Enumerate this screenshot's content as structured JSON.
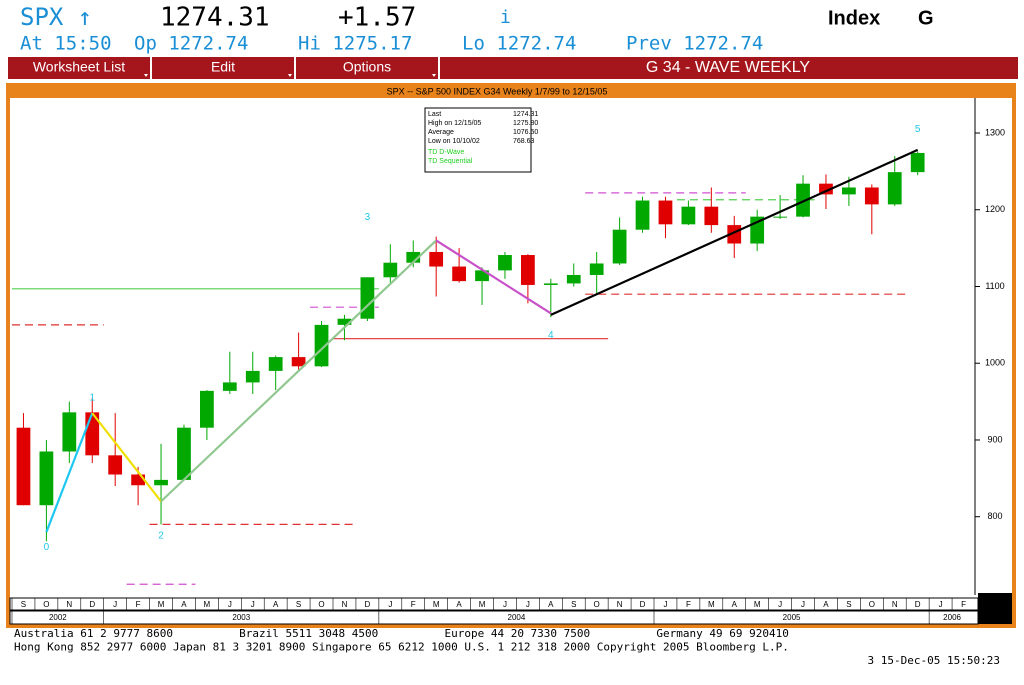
{
  "header": {
    "ticker": "SPX ↑",
    "price": "1274.31",
    "change": "+1.57",
    "info": "i",
    "market": "Index",
    "key": "G",
    "at": "At 15:50",
    "open": "Op 1272.74",
    "high": "Hi 1275.17",
    "low": "Lo 1272.74",
    "prev": "Prev 1272.74"
  },
  "menu": {
    "items": [
      "Worksheet List",
      "Edit",
      "Options"
    ],
    "title": "G 34 - WAVE WEEKLY"
  },
  "info_box": {
    "rows": [
      [
        "Last",
        "1274.31"
      ],
      [
        "High on  12/15/05",
        "1275.80"
      ],
      [
        "Average",
        "1076.50"
      ],
      [
        "Low on  10/10/02",
        "768.63"
      ]
    ],
    "studies": [
      "TD D-Wave",
      "TD Sequential"
    ]
  },
  "chart_data": {
    "type": "candlestick",
    "title": "SPX -- S&P 500 INDEX G34 Weekly 1/7/99 to 12/15/05",
    "x": [
      "2002-09",
      "2002-10",
      "2002-11",
      "2002-12",
      "2003-01",
      "2003-02",
      "2003-03",
      "2003-04",
      "2003-05",
      "2003-06",
      "2003-07",
      "2003-08",
      "2003-09",
      "2003-10",
      "2003-11",
      "2003-12",
      "2004-01",
      "2004-02",
      "2004-03",
      "2004-04",
      "2004-05",
      "2004-06",
      "2004-07",
      "2004-08",
      "2004-09",
      "2004-10",
      "2004-11",
      "2004-12",
      "2005-01",
      "2005-02",
      "2005-03",
      "2005-04",
      "2005-05",
      "2005-06",
      "2005-07",
      "2005-08",
      "2005-09",
      "2005-10",
      "2005-11",
      "2005-12"
    ],
    "open": [
      916,
      815,
      885,
      936,
      880,
      855,
      841,
      848,
      916,
      964,
      975,
      990,
      1008,
      996,
      1050,
      1058,
      1112,
      1131,
      1145,
      1126,
      1107,
      1121,
      1141,
      1102,
      1104,
      1115,
      1130,
      1174,
      1212,
      1181,
      1204,
      1180,
      1156,
      1191,
      1191,
      1234,
      1220,
      1229,
      1207,
      1249
    ],
    "high": [
      935,
      900,
      950,
      955,
      935,
      865,
      895,
      920,
      965,
      1015,
      1015,
      1010,
      1040,
      1055,
      1063,
      1112,
      1155,
      1160,
      1165,
      1150,
      1125,
      1145,
      1142,
      1110,
      1130,
      1145,
      1190,
      1217,
      1217,
      1212,
      1229,
      1192,
      1200,
      1219,
      1245,
      1246,
      1243,
      1233,
      1270,
      1276
    ],
    "low": [
      815,
      768,
      870,
      870,
      840,
      815,
      790,
      850,
      900,
      960,
      960,
      965,
      990,
      995,
      1030,
      1055,
      1105,
      1125,
      1087,
      1105,
      1076,
      1110,
      1078,
      1060,
      1100,
      1090,
      1128,
      1170,
      1163,
      1180,
      1170,
      1137,
      1146,
      1188,
      1190,
      1201,
      1205,
      1168,
      1205,
      1245
    ],
    "close": [
      815,
      885,
      936,
      880,
      855,
      841,
      848,
      916,
      964,
      975,
      990,
      1008,
      996,
      1050,
      1058,
      1112,
      1131,
      1145,
      1126,
      1107,
      1121,
      1141,
      1102,
      1104,
      1115,
      1130,
      1174,
      1212,
      1181,
      1204,
      1180,
      1156,
      1191,
      1191,
      1234,
      1220,
      1229,
      1207,
      1249,
      1274
    ],
    "up_color": "#00a800",
    "down_color": "#e00000",
    "ylim": [
      698,
      1343
    ],
    "yticks": [
      800,
      900,
      1000,
      1100,
      1200,
      1300
    ],
    "months": [
      {
        "value": "2002-09",
        "label": "S"
      },
      {
        "value": "2002-10",
        "label": "O"
      },
      {
        "value": "2002-11",
        "label": "N"
      },
      {
        "value": "2002-12",
        "label": "D"
      },
      {
        "value": "2003-01",
        "label": "J"
      },
      {
        "value": "2003-02",
        "label": "F"
      },
      {
        "value": "2003-03",
        "label": "M"
      },
      {
        "value": "2003-04",
        "label": "A"
      },
      {
        "value": "2003-05",
        "label": "M"
      },
      {
        "value": "2003-06",
        "label": "J"
      },
      {
        "value": "2003-07",
        "label": "J"
      },
      {
        "value": "2003-08",
        "label": "A"
      },
      {
        "value": "2003-09",
        "label": "S"
      },
      {
        "value": "2003-10",
        "label": "O"
      },
      {
        "value": "2003-11",
        "label": "N"
      },
      {
        "value": "2003-12",
        "label": "D"
      },
      {
        "value": "2004-01",
        "label": "J"
      },
      {
        "value": "2004-02",
        "label": "F"
      },
      {
        "value": "2004-03",
        "label": "M"
      },
      {
        "value": "2004-04",
        "label": "A"
      },
      {
        "value": "2004-05",
        "label": "M"
      },
      {
        "value": "2004-06",
        "label": "J"
      },
      {
        "value": "2004-07",
        "label": "J"
      },
      {
        "value": "2004-08",
        "label": "A"
      },
      {
        "value": "2004-09",
        "label": "S"
      },
      {
        "value": "2004-10",
        "label": "O"
      },
      {
        "value": "2004-11",
        "label": "N"
      },
      {
        "value": "2004-12",
        "label": "D"
      },
      {
        "value": "2005-01",
        "label": "J"
      },
      {
        "value": "2005-02",
        "label": "F"
      },
      {
        "value": "2005-03",
        "label": "M"
      },
      {
        "value": "2005-04",
        "label": "A"
      },
      {
        "value": "2005-05",
        "label": "M"
      },
      {
        "value": "2005-06",
        "label": "J"
      },
      {
        "value": "2005-07",
        "label": "J"
      },
      {
        "value": "2005-08",
        "label": "A"
      },
      {
        "value": "2005-09",
        "label": "S"
      },
      {
        "value": "2005-10",
        "label": "O"
      },
      {
        "value": "2005-11",
        "label": "N"
      },
      {
        "value": "2005-12",
        "label": "D"
      },
      {
        "value": "2006-01",
        "label": "J"
      },
      {
        "value": "2006-02",
        "label": "F"
      }
    ],
    "years": [
      "2002",
      "2003",
      "2004",
      "2005",
      "2006"
    ],
    "trend_lines": [
      {
        "color": "#1ec8f0",
        "x": [
          "2002-10",
          "2002-12"
        ],
        "y": [
          780,
          935
        ]
      },
      {
        "color": "#f0e000",
        "x": [
          "2002-12",
          "2003-03"
        ],
        "y": [
          935,
          820
        ]
      },
      {
        "color": "#90c890",
        "x": [
          "2003-03",
          "2004-03"
        ],
        "y": [
          820,
          1160
        ]
      },
      {
        "color": "#c850c8",
        "x": [
          "2004-03",
          "2004-08"
        ],
        "y": [
          1160,
          1065
        ]
      },
      {
        "color": "#000000",
        "x": [
          "2004-08",
          "2005-12"
        ],
        "y": [
          1063,
          1278
        ]
      }
    ],
    "levels": [
      {
        "color": "#e03030",
        "value": 1050,
        "x": [
          "2002-09",
          "2002-12"
        ],
        "dashed": true
      },
      {
        "color": "#50d050",
        "value": 1097,
        "x": [
          "2002-09",
          "2003-12"
        ],
        "dashed": false
      },
      {
        "color": "#d050d0",
        "value": 1073,
        "x": [
          "2003-10",
          "2003-12"
        ],
        "dashed": true
      },
      {
        "color": "#e03030",
        "value": 1032,
        "x": [
          "2003-11",
          "2004-10"
        ],
        "dashed": false
      },
      {
        "color": "#e03030",
        "value": 790,
        "x": [
          "2003-03",
          "2003-11"
        ],
        "dashed": true
      },
      {
        "color": "#d050d0",
        "value": 712,
        "x": [
          "2003-02",
          "2003-04"
        ],
        "dashed": true
      },
      {
        "color": "#d050d0",
        "value": 1222,
        "x": [
          "2004-10",
          "2005-04"
        ],
        "dashed": true
      },
      {
        "color": "#e03030",
        "value": 1090,
        "x": [
          "2004-10",
          "2005-11"
        ],
        "dashed": true
      },
      {
        "color": "#50d050",
        "value": 1213,
        "x": [
          "2005-02",
          "2005-07"
        ],
        "dashed": true
      }
    ],
    "annotations": [
      {
        "text": "0",
        "x": "2002-10",
        "y": 760
      },
      {
        "text": "1",
        "x": "2002-12",
        "y": 955
      },
      {
        "text": "2",
        "x": "2003-03",
        "y": 775
      },
      {
        "text": "3",
        "x": "2003-12",
        "y": 1190
      },
      {
        "text": "4",
        "x": "2004-08",
        "y": 1036
      },
      {
        "text": "5",
        "x": "2005-12",
        "y": 1305
      }
    ],
    "annotation_color": "#20c8e8"
  },
  "footer": {
    "lines": [
      "Australia 61 2 9777 8600          Brazil 5511 3048 4500          Europe 44 20 7330 7500          Germany 49 69 920410",
      "Hong Kong 852 2977 6000 Japan 81 3 3201 8900 Singapore 65 6212 1000 U.S. 1 212 318 2000 Copyright 2005 Bloomberg L.P.",
      "3 15-Dec-05 15:50:23"
    ]
  }
}
